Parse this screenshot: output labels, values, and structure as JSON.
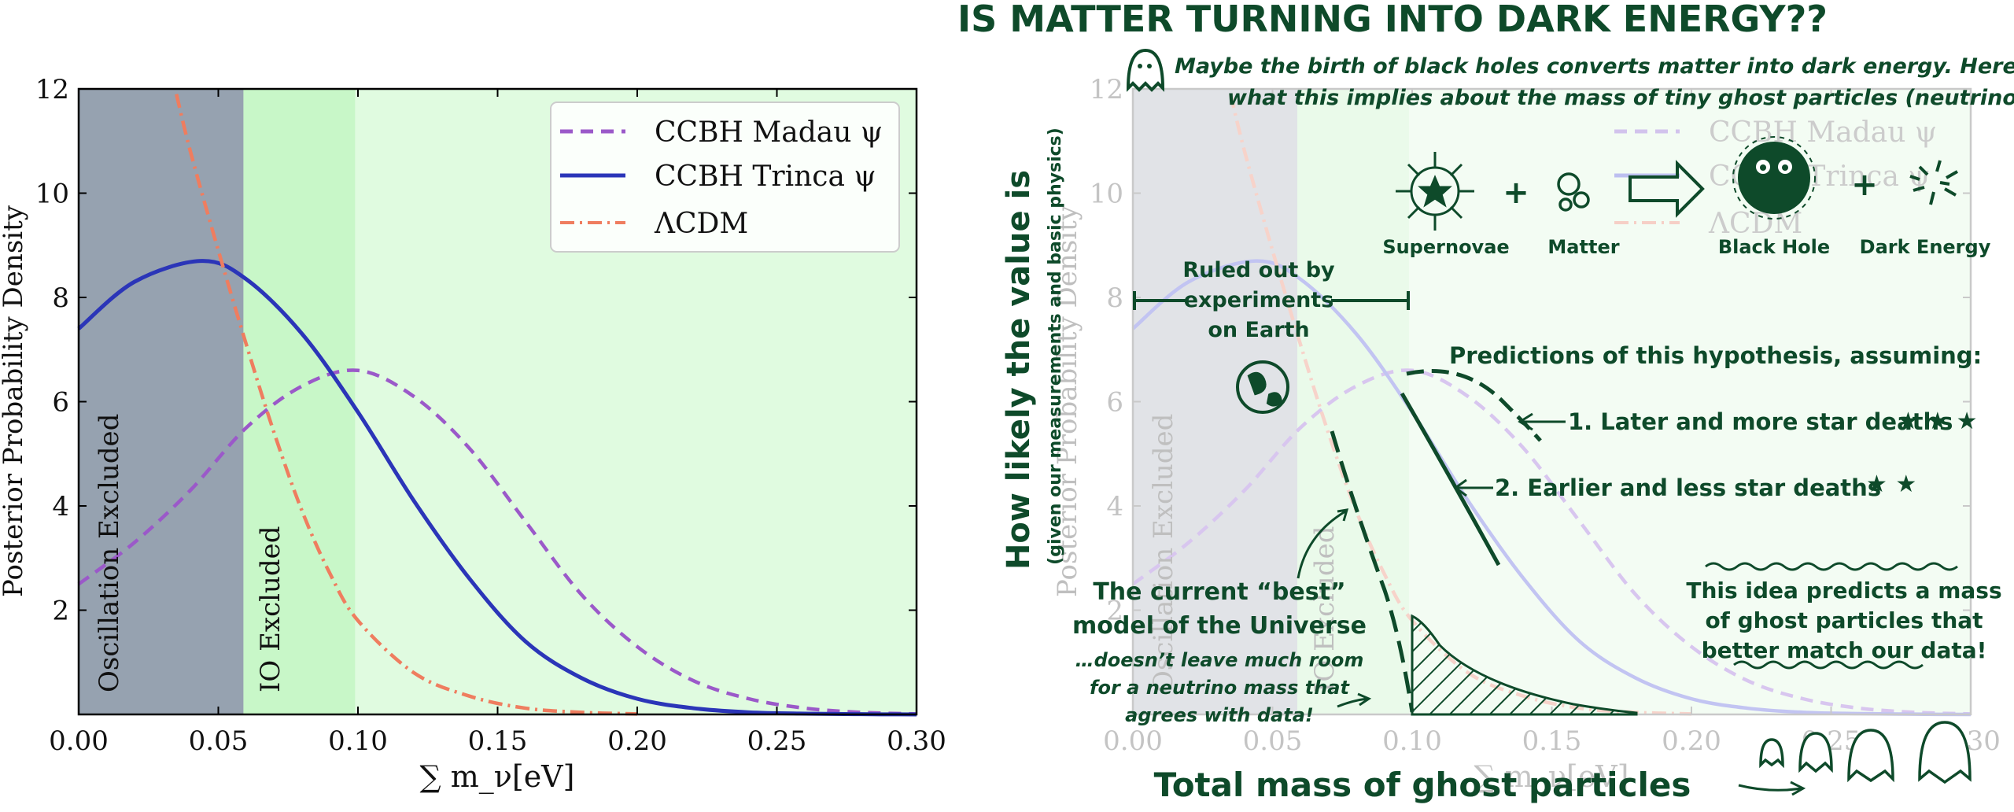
{
  "chart_data": [
    {
      "type": "line",
      "xlabel": "∑ m_ν[eV]",
      "ylabel": "Posterior Probability Density",
      "xlim": [
        0.0,
        0.3
      ],
      "ylim": [
        0,
        12
      ],
      "xticks": [
        "0.00",
        "0.05",
        "0.10",
        "0.15",
        "0.20",
        "0.25",
        "0.30"
      ],
      "yticks": [
        "2",
        "4",
        "6",
        "8",
        "10",
        "12"
      ],
      "regions": [
        {
          "label": "Oscillation Excluded",
          "x0": 0.0,
          "x1": 0.059,
          "color": "#96a2b0"
        },
        {
          "label": "IO Excluded",
          "x0": 0.059,
          "x1": 0.099,
          "color": "#c8f7c8"
        },
        {
          "label": "",
          "x0": 0.099,
          "x1": 0.3,
          "color": "#e0fbe0"
        }
      ],
      "legend_position": "top-right",
      "series": [
        {
          "name": "CCBH Madau ψ",
          "style": "dashed",
          "color": "#9b59c9",
          "x": [
            0.0,
            0.02,
            0.04,
            0.06,
            0.08,
            0.1,
            0.12,
            0.14,
            0.16,
            0.18,
            0.2,
            0.22,
            0.24,
            0.26,
            0.28,
            0.3
          ],
          "values": [
            2.5,
            3.3,
            4.3,
            5.5,
            6.3,
            6.6,
            6.1,
            5.1,
            3.7,
            2.3,
            1.3,
            0.65,
            0.3,
            0.12,
            0.04,
            0.01
          ]
        },
        {
          "name": "CCBH Trinca ψ",
          "style": "solid",
          "color": "#2b35b8",
          "x": [
            0.0,
            0.02,
            0.044,
            0.06,
            0.08,
            0.1,
            0.12,
            0.14,
            0.16,
            0.18,
            0.2,
            0.22,
            0.24,
            0.26,
            0.28,
            0.3
          ],
          "values": [
            7.4,
            8.3,
            8.7,
            8.35,
            7.3,
            5.8,
            4.1,
            2.6,
            1.4,
            0.7,
            0.3,
            0.12,
            0.04,
            0.015,
            0.005,
            0.0
          ]
        },
        {
          "name": "ΛCDM",
          "style": "dashdot",
          "color": "#ef7d5f",
          "x": [
            0.035,
            0.04,
            0.05,
            0.06,
            0.07,
            0.08,
            0.09,
            0.1,
            0.12,
            0.14,
            0.16,
            0.18,
            0.2
          ],
          "values": [
            11.9,
            10.8,
            8.9,
            7.1,
            5.4,
            3.9,
            2.7,
            1.8,
            0.8,
            0.35,
            0.12,
            0.04,
            0.01
          ]
        }
      ]
    },
    {
      "type": "line",
      "xlabel": "Total mass of ghost particles",
      "ylabel": "How likely the value is",
      "ylabel_sub": "(given our measurements and basic physics)",
      "xlim": [
        0.0,
        0.3
      ],
      "ylim": [
        0,
        12
      ],
      "xticks": [
        "0.00",
        "0.05",
        "0.10",
        "0.15",
        "0.20",
        "0.25",
        "0.30"
      ],
      "yticks": [
        "2",
        "4",
        "6",
        "8",
        "10",
        "12"
      ],
      "faded_xlabel": "∑ m_ν[eV]",
      "faded_ylabel": "Posterior Probability Density",
      "faded_regions": [
        "Oscillation Excluded",
        "IO Excluded"
      ],
      "faded_legend": [
        "CCBH Madau ψ",
        "CCBH Trinca ψ",
        "ΛCDM"
      ]
    }
  ],
  "comic": {
    "title": "IS MATTER TURNING INTO DARK ENERGY??",
    "intro_line1": "Maybe the birth of black holes converts matter into dark energy. Here’s",
    "intro_line2": "what this implies about the mass of tiny ghost particles (neutrinos).",
    "icons": [
      {
        "label": "Supernovae",
        "icon": "supernova-icon"
      },
      {
        "label": "Matter",
        "icon": "matter-icon"
      },
      {
        "label": "Black Hole",
        "icon": "black-hole-icon"
      },
      {
        "label": "Dark Energy",
        "icon": "dark-energy-icon"
      }
    ],
    "plus": "+",
    "ruled_out_1": "Ruled out by",
    "ruled_out_2": "experiments",
    "ruled_out_3": "on Earth",
    "predictions_header": "Predictions of this hypothesis, assuming:",
    "prediction_1": "1. Later and more star deaths",
    "prediction_2": "2. Earlier and less star deaths",
    "current_1": "The current “best”",
    "current_2": "model of the Universe",
    "current_3": "…doesn’t leave much room",
    "current_4": "for a neutrino mass that",
    "current_5": "agrees with data!",
    "idea_1": "This idea predicts a mass",
    "idea_2": "of ghost particles that",
    "idea_3": "better match our data!",
    "colors": {
      "ink": "#0e4a2a",
      "fade": "#b7b7b7"
    }
  }
}
